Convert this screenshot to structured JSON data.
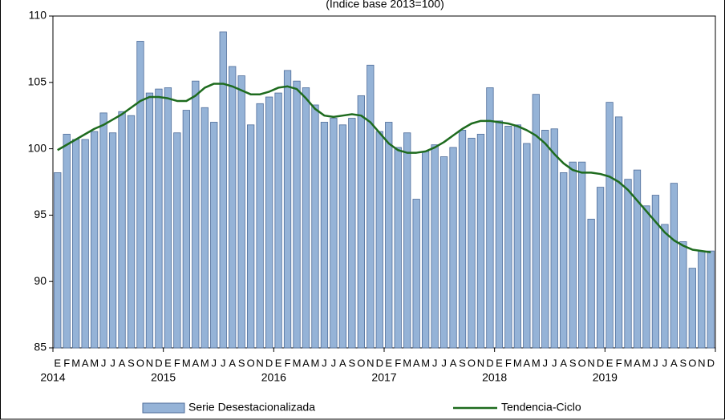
{
  "chart_data": {
    "type": "bar-line",
    "subtitle": "(Índice base 2013=100)",
    "categories": [
      "E",
      "F",
      "M",
      "A",
      "M",
      "J",
      "J",
      "A",
      "S",
      "O",
      "N",
      "D",
      "E",
      "F",
      "M",
      "A",
      "M",
      "J",
      "J",
      "A",
      "S",
      "O",
      "N",
      "D",
      "E",
      "F",
      "M",
      "A",
      "M",
      "J",
      "J",
      "A",
      "S",
      "O",
      "N",
      "D",
      "E",
      "F",
      "M",
      "A",
      "M",
      "J",
      "J",
      "A",
      "S",
      "O",
      "N",
      "D",
      "E",
      "F",
      "M",
      "A",
      "M",
      "J",
      "J",
      "A",
      "S",
      "O",
      "N",
      "D",
      "E",
      "F",
      "M",
      "A",
      "M",
      "J",
      "J",
      "A",
      "S",
      "O",
      "N",
      "D"
    ],
    "year_labels": [
      "2014",
      "2015",
      "2016",
      "2017",
      "2018",
      "2019"
    ],
    "series": [
      {
        "name": "Serie Desestacionalizada",
        "kind": "bar",
        "color": "#95b3d7",
        "values": [
          98.2,
          101.1,
          100.7,
          100.7,
          101.3,
          102.7,
          101.2,
          102.8,
          102.5,
          108.1,
          104.2,
          104.5,
          104.6,
          101.2,
          102.9,
          105.1,
          103.1,
          102.0,
          108.8,
          106.2,
          105.5,
          101.8,
          103.4,
          103.9,
          104.2,
          105.9,
          105.1,
          104.6,
          103.3,
          102.0,
          102.3,
          101.8,
          102.3,
          104.0,
          106.3,
          101.3,
          102.0,
          100.1,
          101.2,
          96.2,
          99.8,
          100.3,
          99.4,
          100.1,
          101.4,
          100.8,
          101.1,
          104.6,
          102.1,
          101.7,
          101.8,
          100.4,
          104.1,
          101.4,
          101.5,
          98.2,
          99.0,
          99.0,
          94.7,
          97.1,
          103.5,
          102.4,
          97.7,
          98.4,
          95.7,
          96.5,
          94.3,
          97.4,
          93.0,
          91.0,
          92.3,
          92.3
        ]
      },
      {
        "name": "Tendencia-Ciclo",
        "kind": "line",
        "color": "#1e6b1e",
        "values": [
          99.9,
          100.3,
          100.7,
          101.1,
          101.5,
          101.8,
          102.2,
          102.6,
          103.1,
          103.6,
          103.9,
          103.9,
          103.8,
          103.6,
          103.6,
          104.0,
          104.6,
          104.9,
          104.9,
          104.7,
          104.4,
          104.1,
          104.1,
          104.3,
          104.6,
          104.7,
          104.5,
          103.8,
          103.0,
          102.5,
          102.4,
          102.5,
          102.6,
          102.5,
          102.0,
          101.2,
          100.4,
          99.9,
          99.7,
          99.7,
          99.8,
          100.1,
          100.5,
          101.0,
          101.5,
          101.9,
          102.1,
          102.1,
          102.0,
          101.9,
          101.7,
          101.4,
          101.0,
          100.4,
          99.6,
          98.9,
          98.4,
          98.2,
          98.2,
          98.1,
          97.9,
          97.5,
          96.9,
          96.1,
          95.3,
          94.5,
          93.7,
          93.1,
          92.7,
          92.4,
          92.3,
          92.2
        ]
      }
    ],
    "ylim": [
      85,
      110
    ],
    "yticks": [
      85,
      90,
      95,
      100,
      105,
      110
    ]
  }
}
